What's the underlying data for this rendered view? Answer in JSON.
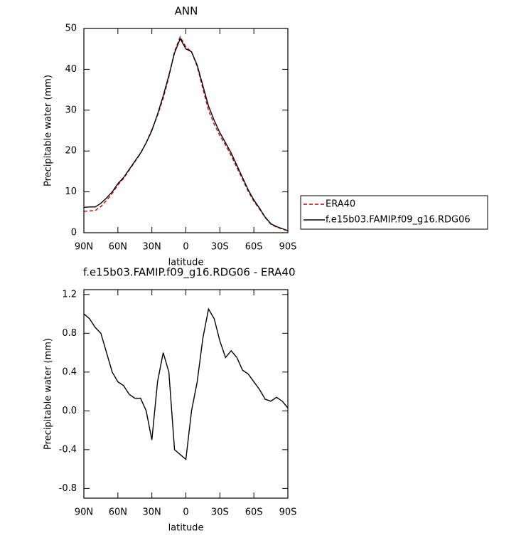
{
  "chart_data": [
    {
      "type": "line",
      "title": "ANN",
      "xlabel": "latitude",
      "ylabel": "Precipitable water (mm)",
      "x": [
        90,
        85,
        80,
        75,
        70,
        65,
        60,
        55,
        50,
        45,
        40,
        35,
        30,
        25,
        20,
        15,
        10,
        5,
        0,
        -5,
        -10,
        -15,
        -20,
        -25,
        -30,
        -35,
        -40,
        -45,
        -50,
        -55,
        -60,
        -65,
        -70,
        -75,
        -80,
        -85,
        -90
      ],
      "xlim": [
        90,
        -90
      ],
      "xticks": [
        {
          "value": 90,
          "label": "90N"
        },
        {
          "value": 60,
          "label": "60N"
        },
        {
          "value": 30,
          "label": "30N"
        },
        0,
        {
          "value": -30,
          "label": "30S"
        },
        {
          "value": -60,
          "label": "60S"
        },
        {
          "value": -90,
          "label": "90S"
        }
      ],
      "ylim": [
        0,
        50
      ],
      "yticks": [
        0,
        10,
        20,
        30,
        40,
        50
      ],
      "legend": "right",
      "series": [
        {
          "name": "ERA40",
          "color": "#cc0000",
          "dashed": true,
          "values": [
            5.2,
            5.35,
            5.44,
            6.4,
            7.9,
            9.6,
            11.7,
            13.24,
            15.33,
            17.37,
            19.37,
            22.0,
            25.3,
            28.7,
            32.9,
            38.1,
            44.4,
            47.95,
            45.5,
            44.3,
            40.7,
            35.25,
            29.95,
            26.55,
            23.78,
            21.45,
            18.88,
            15.95,
            13.08,
            10.12,
            7.7,
            5.78,
            3.68,
            2.1,
            1.36,
            0.9,
            0.47
          ]
        },
        {
          "name": "f.e15b03.FAMIP.f09_g16.RDG06",
          "color": "#000000",
          "dashed": false,
          "values": [
            6.2,
            6.3,
            6.3,
            7.2,
            8.5,
            10,
            12,
            13.5,
            15.5,
            17.5,
            19.5,
            22,
            25,
            29,
            33.5,
            38.5,
            44,
            47.5,
            45,
            44.3,
            41,
            36,
            31,
            27.5,
            24.5,
            22,
            19.5,
            16.5,
            13.5,
            10.5,
            8,
            6,
            3.8,
            2.2,
            1.5,
            1,
            0.5
          ]
        }
      ]
    },
    {
      "type": "line",
      "title": "f.e15b03.FAMIP.f09_g16.RDG06 - ERA40",
      "xlabel": "latitude",
      "ylabel": "Precipitable water (mm)",
      "x": [
        90,
        85,
        80,
        75,
        70,
        65,
        60,
        55,
        50,
        45,
        40,
        35,
        30,
        25,
        20,
        15,
        10,
        5,
        0,
        -5,
        -10,
        -15,
        -20,
        -25,
        -30,
        -35,
        -40,
        -45,
        -50,
        -55,
        -60,
        -65,
        -70,
        -75,
        -80,
        -85,
        -90
      ],
      "xlim": [
        90,
        -90
      ],
      "xticks": [
        {
          "value": 90,
          "label": "90N"
        },
        {
          "value": 60,
          "label": "60N"
        },
        {
          "value": 30,
          "label": "30N"
        },
        0,
        {
          "value": -30,
          "label": "30S"
        },
        {
          "value": -60,
          "label": "60S"
        },
        {
          "value": -90,
          "label": "90S"
        }
      ],
      "ylim": [
        -0.9,
        1.25
      ],
      "yticks": [
        -0.8,
        -0.4,
        {
          "value": 0,
          "label": "0.0"
        },
        0.4,
        0.8,
        1.2
      ],
      "series": [
        {
          "color": "#000000",
          "dashed": false,
          "values": [
            1.0,
            0.95,
            0.86,
            0.8,
            0.6,
            0.4,
            0.3,
            0.26,
            0.17,
            0.13,
            0.13,
            0.0,
            -0.3,
            0.3,
            0.6,
            0.4,
            -0.4,
            -0.45,
            -0.5,
            0.0,
            0.3,
            0.75,
            1.05,
            0.95,
            0.72,
            0.55,
            0.62,
            0.55,
            0.42,
            0.38,
            0.3,
            0.22,
            0.12,
            0.1,
            0.14,
            0.1,
            0.03
          ]
        }
      ]
    }
  ]
}
